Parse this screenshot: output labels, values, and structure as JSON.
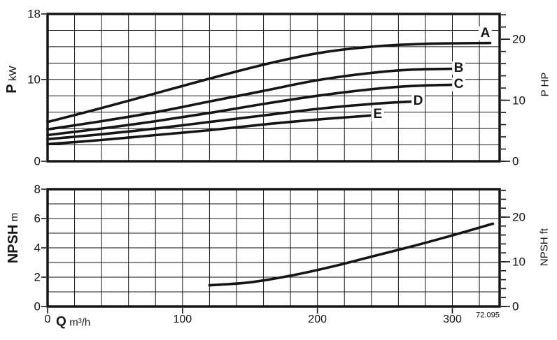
{
  "colors": {
    "ink": "#151515",
    "background": "#ffffff"
  },
  "footnote": "72.095",
  "x_axis": {
    "label_bold": "Q",
    "label_unit": "m³/h",
    "range": [
      0,
      335
    ],
    "grid_step": 20,
    "tick_values": [
      0,
      100,
      200,
      300
    ],
    "tick_labels": [
      "0",
      "100",
      "200",
      "300"
    ]
  },
  "chart_data": [
    {
      "name": "power-vs-flow",
      "type": "line",
      "grid": true,
      "legend": "curve letters at line ends",
      "y_left": {
        "title_bold": "P",
        "title_unit": "kW",
        "range": [
          0,
          18
        ],
        "grid_step": 2,
        "labeled_ticks": [
          18,
          10,
          0
        ]
      },
      "y_right": {
        "title": "P HP",
        "units_per_left_unit": 1.34102,
        "labeled_ticks": [
          20,
          10,
          0
        ],
        "minor_tick_step": 2
      },
      "series": [
        {
          "name": "A",
          "label_dx": -7,
          "label_dy": -14,
          "points": [
            [
              0,
              4.8
            ],
            [
              40,
              6.5
            ],
            [
              80,
              8.3
            ],
            [
              120,
              10.1
            ],
            [
              160,
              11.8
            ],
            [
              200,
              13.2
            ],
            [
              240,
              14.0
            ],
            [
              280,
              14.35
            ],
            [
              328,
              14.45
            ]
          ]
        },
        {
          "name": "B",
          "label_dx": 9,
          "label_dy": -1,
          "points": [
            [
              0,
              3.9
            ],
            [
              40,
              4.9
            ],
            [
              80,
              6.0
            ],
            [
              120,
              7.3
            ],
            [
              160,
              8.6
            ],
            [
              200,
              9.9
            ],
            [
              240,
              10.8
            ],
            [
              270,
              11.2
            ],
            [
              300,
              11.3
            ]
          ]
        },
        {
          "name": "C",
          "label_dx": 9,
          "label_dy": 0,
          "points": [
            [
              0,
              3.2
            ],
            [
              40,
              4.0
            ],
            [
              80,
              4.9
            ],
            [
              120,
              5.9
            ],
            [
              160,
              7.0
            ],
            [
              200,
              8.0
            ],
            [
              240,
              8.8
            ],
            [
              270,
              9.2
            ],
            [
              300,
              9.35
            ]
          ]
        },
        {
          "name": "D",
          "label_dx": 9,
          "label_dy": 0,
          "points": [
            [
              0,
              2.7
            ],
            [
              40,
              3.3
            ],
            [
              80,
              4.0
            ],
            [
              120,
              4.8
            ],
            [
              160,
              5.6
            ],
            [
              200,
              6.4
            ],
            [
              240,
              7.0
            ],
            [
              270,
              7.3
            ]
          ]
        },
        {
          "name": "E",
          "label_dx": 9,
          "label_dy": -1,
          "points": [
            [
              0,
              2.1
            ],
            [
              40,
              2.6
            ],
            [
              80,
              3.2
            ],
            [
              120,
              3.8
            ],
            [
              160,
              4.5
            ],
            [
              200,
              5.1
            ],
            [
              240,
              5.6
            ]
          ]
        }
      ]
    },
    {
      "name": "npsh-vs-flow",
      "type": "line",
      "grid": true,
      "y_left": {
        "title_bold": "NPSH",
        "title_unit": "m",
        "range": [
          0,
          8
        ],
        "grid_step": 1,
        "labeled_ticks": [
          8,
          6,
          4,
          2,
          0
        ]
      },
      "y_right": {
        "title": "NPSH ft",
        "units_per_left_unit": 3.28084,
        "labeled_ticks": [
          20,
          10,
          0
        ],
        "minor_tick_step": 2
      },
      "series": [
        {
          "name": "NPSH",
          "show_label": false,
          "points": [
            [
              120,
              1.45
            ],
            [
              150,
              1.65
            ],
            [
              180,
              2.1
            ],
            [
              210,
              2.7
            ],
            [
              240,
              3.4
            ],
            [
              270,
              4.1
            ],
            [
              300,
              4.85
            ],
            [
              330,
              5.65
            ]
          ]
        }
      ]
    }
  ]
}
